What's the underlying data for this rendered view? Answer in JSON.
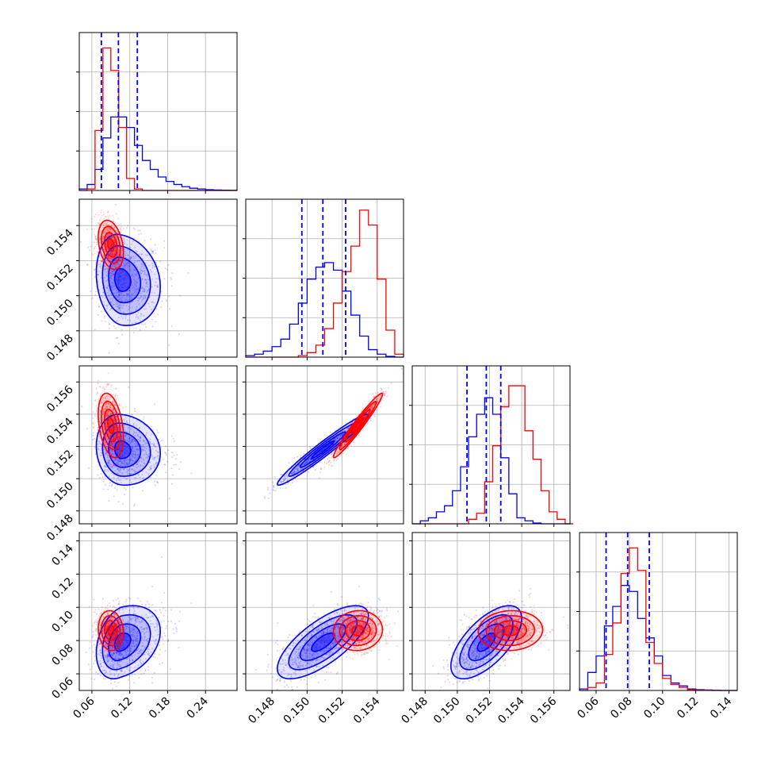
{
  "chart_data": {
    "type": "corner",
    "title": "",
    "grid": true,
    "series": [
      {
        "color": "#0000ff",
        "quantiles_shown": true
      },
      {
        "color": "#ff0000",
        "quantiles_shown": false
      }
    ],
    "params": [
      {
        "ticks": [
          "0.06",
          "0.12",
          "0.18",
          "0.24"
        ],
        "ticks_num": [
          0.06,
          0.12,
          0.18,
          0.24
        ],
        "range": [
          0.04,
          0.29
        ]
      },
      {
        "ticks": [
          "0.148",
          "0.150",
          "0.152",
          "0.154"
        ],
        "ticks_num": [
          0.148,
          0.15,
          0.152,
          0.154
        ],
        "range": [
          0.1465,
          0.1555
        ]
      },
      {
        "ticks": [
          "0.148",
          "0.150",
          "0.152",
          "0.154",
          "0.156"
        ],
        "ticks_num": [
          0.148,
          0.15,
          0.152,
          0.154,
          0.156
        ],
        "range": [
          0.1472,
          0.157
        ]
      },
      {
        "ticks": [
          "0.06",
          "0.08",
          "0.10",
          "0.12",
          "0.14"
        ],
        "ticks_num": [
          0.06,
          0.08,
          0.1,
          0.12,
          0.14
        ],
        "range": [
          0.05,
          0.145
        ]
      }
    ],
    "quantiles": [
      [
        0.075,
        0.102,
        0.132
      ],
      [
        0.1497,
        0.1509,
        0.1522
      ],
      [
        0.1506,
        0.1518,
        0.1527
      ],
      [
        0.066,
        0.079,
        0.092
      ]
    ],
    "histograms": [
      {
        "edges": [
          0.04,
          0.0525,
          0.065,
          0.0775,
          0.09,
          0.1025,
          0.115,
          0.1275,
          0.14,
          0.1525,
          0.165,
          0.1775,
          0.19,
          0.2025,
          0.215,
          0.2275,
          0.24,
          0.2525,
          0.265,
          0.2775,
          0.29
        ],
        "blue": [
          0.01,
          0.04,
          0.14,
          0.35,
          0.49,
          0.49,
          0.42,
          0.3,
          0.2,
          0.14,
          0.09,
          0.06,
          0.04,
          0.025,
          0.015,
          0.01,
          0.005,
          0.003,
          0.002,
          0.001
        ],
        "red": [
          0.0,
          0.01,
          0.4,
          0.95,
          0.8,
          0.42,
          0.08,
          0.01,
          0.0,
          0.0,
          0.0,
          0.0,
          0.0,
          0.0,
          0.0,
          0.0,
          0.0,
          0.0,
          0.0,
          0.0
        ]
      },
      {
        "edges": [
          0.1465,
          0.147,
          0.1475,
          0.148,
          0.1485,
          0.149,
          0.1495,
          0.15,
          0.1505,
          0.151,
          0.1515,
          0.152,
          0.1525,
          0.153,
          0.1535,
          0.154,
          0.1545,
          0.155,
          0.1555
        ],
        "blue": [
          0.01,
          0.02,
          0.04,
          0.07,
          0.12,
          0.22,
          0.36,
          0.52,
          0.6,
          0.63,
          0.58,
          0.44,
          0.28,
          0.14,
          0.05,
          0.02,
          0.005,
          0.0
        ],
        "red": [
          0.0,
          0.0,
          0.0,
          0.0,
          0.0,
          0.0,
          0.01,
          0.03,
          0.08,
          0.19,
          0.36,
          0.57,
          0.74,
          0.98,
          0.88,
          0.52,
          0.18,
          0.02
        ]
      },
      {
        "edges": [
          0.1472,
          0.1477,
          0.1482,
          0.1487,
          0.1492,
          0.1497,
          0.1502,
          0.1507,
          0.1512,
          0.1517,
          0.1522,
          0.1527,
          0.1532,
          0.1537,
          0.1542,
          0.1547,
          0.1552,
          0.1557,
          0.1562,
          0.1567,
          0.1572
        ],
        "blue": [
          0.0,
          0.02,
          0.04,
          0.08,
          0.12,
          0.22,
          0.38,
          0.58,
          0.73,
          0.84,
          0.73,
          0.44,
          0.2,
          0.04,
          0.02,
          0.005,
          0.0,
          0.0,
          0.0,
          0.0
        ],
        "red": [
          0.0,
          0.0,
          0.0,
          0.0,
          0.0,
          0.0,
          0.0,
          0.03,
          0.07,
          0.28,
          0.52,
          0.78,
          0.92,
          0.92,
          0.62,
          0.43,
          0.22,
          0.08,
          0.03,
          0.0
        ]
      },
      {
        "edges": [
          0.05,
          0.055,
          0.06,
          0.065,
          0.07,
          0.075,
          0.08,
          0.085,
          0.09,
          0.095,
          0.1,
          0.105,
          0.11,
          0.115,
          0.12,
          0.125,
          0.13,
          0.135,
          0.14,
          0.145
        ],
        "blue": [
          0.01,
          0.12,
          0.23,
          0.43,
          0.56,
          0.7,
          0.66,
          0.48,
          0.35,
          0.23,
          0.1,
          0.05,
          0.03,
          0.01,
          0.005,
          0.003,
          0.001,
          0.0,
          0.0
        ],
        "red": [
          0.0,
          0.02,
          0.05,
          0.24,
          0.45,
          0.78,
          0.95,
          0.8,
          0.32,
          0.18,
          0.08,
          0.04,
          0.02,
          0.005,
          0.002,
          0.001,
          0.0,
          0.0,
          0.0
        ]
      }
    ],
    "distributions": {
      "blue": {
        "mean": [
          0.106,
          0.1509,
          0.1518,
          0.079
        ],
        "sd": [
          0.026,
          0.0013,
          0.0011,
          0.011
        ]
      },
      "red": {
        "mean": [
          0.09,
          0.1529,
          0.1533,
          0.086
        ],
        "sd": [
          0.01,
          0.0007,
          0.001,
          0.006
        ]
      }
    },
    "correlations": {
      "blue": {
        "1-0": -0.15,
        "2-0": -0.1,
        "2-1": 0.97,
        "3-0": 0.3,
        "3-1": 0.72,
        "3-2": 0.65
      },
      "red": {
        "1-0": -0.3,
        "2-0": -0.35,
        "2-1": 0.97,
        "3-0": -0.1,
        "3-1": 0.05,
        "3-2": 0.05
      }
    }
  }
}
